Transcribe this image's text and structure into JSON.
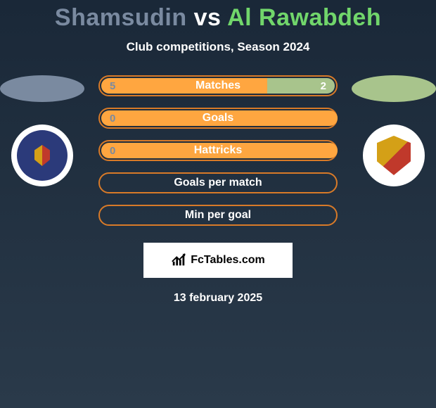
{
  "title": {
    "prefix": "Shamsudin",
    "vs": "vs",
    "suffix": "Al Rawabdeh",
    "prefix_color": "#7a8aa0",
    "vs_color": "#ffffff",
    "suffix_color": "#71d66b"
  },
  "subtitle": {
    "text": "Club competitions, Season 2024",
    "color": "#ffffff"
  },
  "players": {
    "left": {
      "avatar_bg": "#7a8aa0"
    },
    "right": {
      "avatar_bg": "#a8c48c"
    }
  },
  "bars_common": {
    "border_color": "#d87a28",
    "fill_left_color": "#ffa640",
    "fill_right_color": "#a8c48c",
    "label_color": "#ffffff",
    "val_left_color": "#7a8aa0",
    "val_right_color": "#ffffff"
  },
  "bars": [
    {
      "label": "Matches",
      "left_value": "5",
      "right_value": "2",
      "left_frac": 0.714,
      "right_frac": 0.286,
      "show_left": true,
      "show_right": true
    },
    {
      "label": "Goals",
      "left_value": "0",
      "right_value": "",
      "left_frac": 1.0,
      "right_frac": 0.0,
      "show_left": true,
      "show_right": false
    },
    {
      "label": "Hattricks",
      "left_value": "0",
      "right_value": "",
      "left_frac": 1.0,
      "right_frac": 0.0,
      "show_left": true,
      "show_right": false
    },
    {
      "label": "Goals per match",
      "left_value": "",
      "right_value": "",
      "left_frac": 0.0,
      "right_frac": 0.0,
      "show_left": false,
      "show_right": false
    },
    {
      "label": "Min per goal",
      "left_value": "",
      "right_value": "",
      "left_frac": 0.0,
      "right_frac": 0.0,
      "show_left": false,
      "show_right": false
    }
  ],
  "brand": {
    "text": "FcTables.com",
    "icon_color": "#000000"
  },
  "date": {
    "text": "13 february 2025",
    "color": "#ffffff"
  }
}
